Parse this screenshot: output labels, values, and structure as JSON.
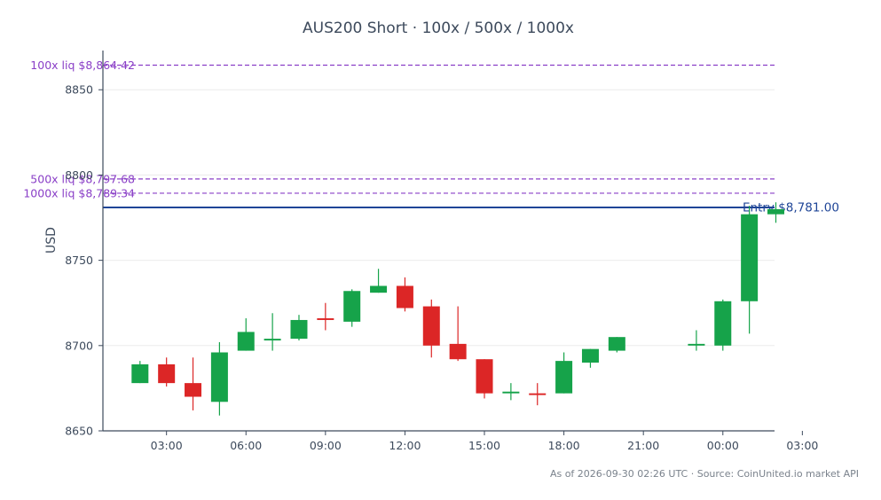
{
  "chart_data": {
    "type": "candlestick",
    "title": "AUS200 Short · 100x / 500x / 1000x",
    "ylabel": "USD",
    "ylim": [
      8650,
      8873
    ],
    "y_ticks": [
      8650,
      8700,
      8750,
      8800,
      8850
    ],
    "x_range_hours": [
      0.6,
      25.95
    ],
    "x_ticks": [
      {
        "hour": 3,
        "label": "03:00"
      },
      {
        "hour": 6,
        "label": "06:00"
      },
      {
        "hour": 9,
        "label": "09:00"
      },
      {
        "hour": 12,
        "label": "12:00"
      },
      {
        "hour": 15,
        "label": "15:00"
      },
      {
        "hour": 18,
        "label": "18:00"
      },
      {
        "hour": 21,
        "label": "21:00"
      },
      {
        "hour": 24,
        "label": "00:00"
      },
      {
        "hour": 27,
        "label": "03:00"
      }
    ],
    "grid": true,
    "colors": {
      "up": "#16a34a",
      "down": "#dc2626",
      "entry": "#1f4597",
      "liq": "#8a3fc7"
    },
    "candles": [
      {
        "h": 2,
        "o": 8678,
        "hi": 8691,
        "lo": 8678,
        "c": 8689
      },
      {
        "h": 3,
        "o": 8689,
        "hi": 8693,
        "lo": 8676,
        "c": 8678
      },
      {
        "h": 4,
        "o": 8678,
        "hi": 8693,
        "lo": 8662,
        "c": 8670
      },
      {
        "h": 5,
        "o": 8667,
        "hi": 8702,
        "lo": 8659,
        "c": 8696
      },
      {
        "h": 6,
        "o": 8697,
        "hi": 8716,
        "lo": 8697,
        "c": 8708
      },
      {
        "h": 7,
        "o": 8703,
        "hi": 8719,
        "lo": 8697,
        "c": 8704
      },
      {
        "h": 8,
        "o": 8704,
        "hi": 8718,
        "lo": 8703,
        "c": 8715
      },
      {
        "h": 9,
        "o": 8716,
        "hi": 8725,
        "lo": 8709,
        "c": 8715
      },
      {
        "h": 10,
        "o": 8714,
        "hi": 8733,
        "lo": 8711,
        "c": 8732
      },
      {
        "h": 11,
        "o": 8731,
        "hi": 8745,
        "lo": 8731,
        "c": 8735
      },
      {
        "h": 12,
        "o": 8735,
        "hi": 8740,
        "lo": 8720,
        "c": 8722
      },
      {
        "h": 13,
        "o": 8723,
        "hi": 8727,
        "lo": 8693,
        "c": 8700
      },
      {
        "h": 14,
        "o": 8701,
        "hi": 8723,
        "lo": 8691,
        "c": 8692
      },
      {
        "h": 15,
        "o": 8692,
        "hi": 8692,
        "lo": 8669,
        "c": 8672
      },
      {
        "h": 16,
        "o": 8672,
        "hi": 8678,
        "lo": 8668,
        "c": 8673
      },
      {
        "h": 17,
        "o": 8672,
        "hi": 8678,
        "lo": 8665,
        "c": 8671
      },
      {
        "h": 18,
        "o": 8672,
        "hi": 8696,
        "lo": 8672,
        "c": 8691
      },
      {
        "h": 19,
        "o": 8690,
        "hi": 8698,
        "lo": 8687,
        "c": 8698
      },
      {
        "h": 20,
        "o": 8697,
        "hi": 8705,
        "lo": 8696,
        "c": 8705
      },
      {
        "h": 23,
        "o": 8700,
        "hi": 8709,
        "lo": 8697,
        "c": 8701
      },
      {
        "h": 24,
        "o": 8700,
        "hi": 8727,
        "lo": 8697,
        "c": 8726
      },
      {
        "h": 25,
        "o": 8726,
        "hi": 8782,
        "lo": 8707,
        "c": 8777
      },
      {
        "h": 26,
        "o": 8777,
        "hi": 8784,
        "lo": 8772,
        "c": 8780
      }
    ],
    "levels": [
      {
        "kind": "liq",
        "label": "100x liq $8,864.42",
        "value": 8864.42
      },
      {
        "kind": "liq",
        "label": "500x liq $8,797.68",
        "value": 8797.68
      },
      {
        "kind": "liq",
        "label": "1000x liq $8,789.34",
        "value": 8789.34
      },
      {
        "kind": "entry",
        "label": "Entry $8,781.00",
        "value": 8781.0
      }
    ],
    "footer": "As of 2026-09-30 02:26 UTC · Source: CoinUnited.io market API"
  }
}
